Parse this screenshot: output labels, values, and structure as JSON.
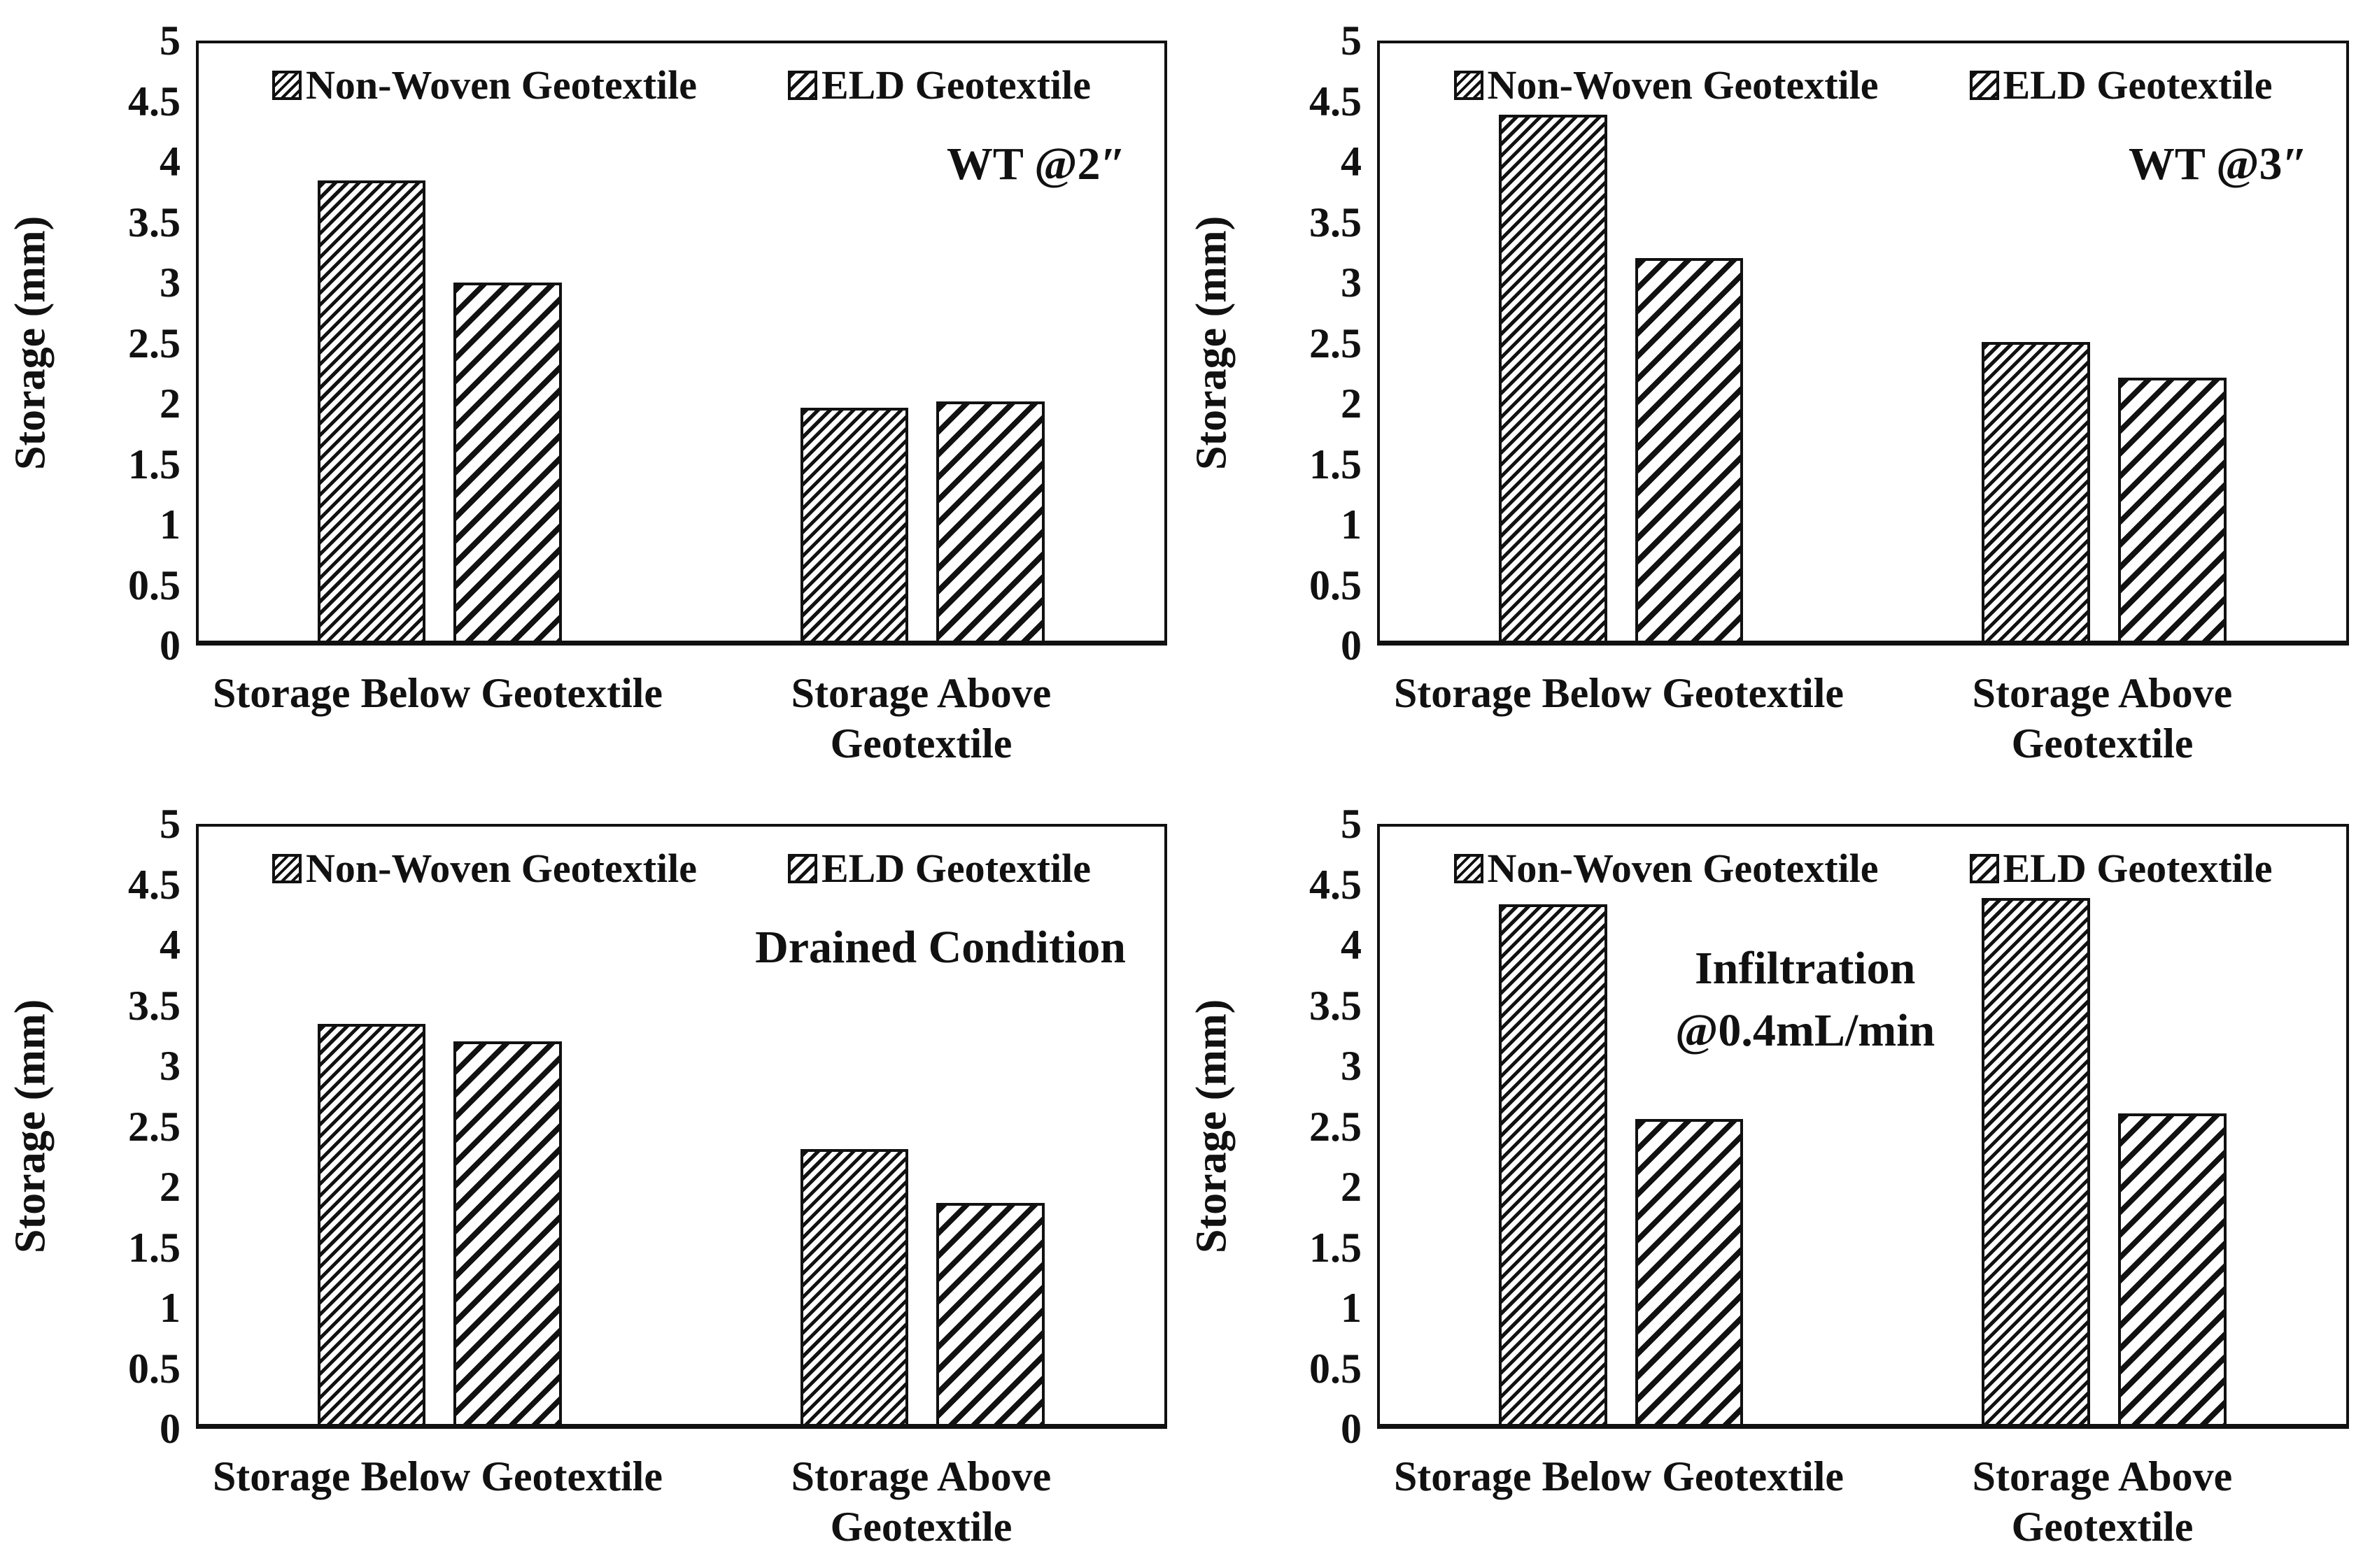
{
  "figure": {
    "background_color": "#ffffff",
    "ink_color": "#111111",
    "description": "Four-panel hatched bar chart figure comparing storage of Non-Woven vs ELD geotextile"
  },
  "legend": {
    "entries": [
      {
        "label": "Non-Woven Geotextile",
        "hatch": "dense-diagonal-hatch-swatch"
      },
      {
        "label": "ELD Geotextile",
        "hatch": "wide-diagonal-hatch-swatch"
      }
    ]
  },
  "chart_data": [
    {
      "type": "bar",
      "panel": "top-left",
      "annotation": {
        "lines": [
          "WT @2″"
        ],
        "align": "right"
      },
      "ylabel": "Storage (mm)",
      "ylim": [
        0,
        5
      ],
      "ytick_step": 0.5,
      "grid": false,
      "legend_position": "top-inside",
      "categories": [
        "Storage Below Geotextile",
        "Storage Above Geotextile"
      ],
      "x_axis": {
        "labels": [
          [
            "Storage Below Geotextile"
          ],
          [
            "Storage Above",
            "Geotextile"
          ]
        ]
      },
      "series": [
        {
          "name": "Non-Woven Geotextile",
          "values": [
            3.85,
            1.95
          ]
        },
        {
          "name": "ELD Geotextile",
          "values": [
            3.0,
            2.0
          ]
        }
      ]
    },
    {
      "type": "bar",
      "panel": "top-right",
      "annotation": {
        "lines": [
          "WT @3″"
        ],
        "align": "right"
      },
      "ylabel": "Storage (mm)",
      "ylim": [
        0,
        5
      ],
      "ytick_step": 0.5,
      "grid": false,
      "legend_position": "top-inside",
      "categories": [
        "Storage Below Geotextile",
        "Storage Above Geotextile"
      ],
      "x_axis": {
        "labels": [
          [
            "Storage Below Geotextile"
          ],
          [
            "Storage Above",
            "Geotextile"
          ]
        ]
      },
      "series": [
        {
          "name": "Non-Woven Geotextile",
          "values": [
            4.4,
            2.5
          ]
        },
        {
          "name": "ELD Geotextile",
          "values": [
            3.2,
            2.2
          ]
        }
      ]
    },
    {
      "type": "bar",
      "panel": "bottom-left",
      "annotation": {
        "lines": [
          "Drained Condition"
        ],
        "align": "right"
      },
      "ylabel": "Storage (mm)",
      "ylim": [
        0,
        5
      ],
      "ytick_step": 0.5,
      "grid": false,
      "legend_position": "top-inside",
      "categories": [
        "Storage Below Geotextile",
        "Storage Above Geotextile"
      ],
      "x_axis": {
        "labels": [
          [
            "Storage Below Geotextile"
          ],
          [
            "Storage Above",
            "Geotextile"
          ]
        ]
      },
      "series": [
        {
          "name": "Non-Woven Geotextile",
          "values": [
            3.35,
            2.3
          ]
        },
        {
          "name": "ELD Geotextile",
          "values": [
            3.2,
            1.85
          ]
        }
      ]
    },
    {
      "type": "bar",
      "panel": "bottom-right",
      "annotation": {
        "lines": [
          "Infiltration",
          "@0.4mL/min"
        ],
        "align": "center"
      },
      "ylabel": "Storage (mm)",
      "ylim": [
        0,
        5
      ],
      "ytick_step": 0.5,
      "grid": false,
      "legend_position": "top-inside",
      "categories": [
        "Storage Below Geotextile",
        "Storage Above Geotextile"
      ],
      "x_axis": {
        "labels": [
          [
            "Storage Below Geotextile"
          ],
          [
            "Storage Above",
            "Geotextile"
          ]
        ]
      },
      "series": [
        {
          "name": "Non-Woven Geotextile",
          "values": [
            4.35,
            4.4
          ]
        },
        {
          "name": "ELD Geotextile",
          "values": [
            2.55,
            2.6
          ]
        }
      ]
    }
  ]
}
